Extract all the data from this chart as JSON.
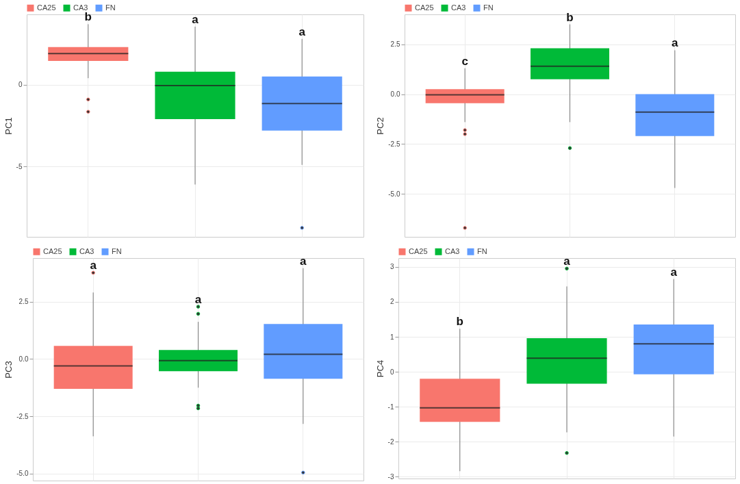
{
  "chart_data": [
    {
      "type": "box",
      "ylabel": "PC1",
      "categories": [
        null,
        null,
        null
      ],
      "legend": "top",
      "grid": true,
      "tick_labels": "y",
      "ylim": [
        -9.3,
        4.3
      ],
      "yticks": [
        -5,
        0
      ],
      "series": [
        {
          "name": "CA25",
          "color": "#f8766d",
          "boxes": [
            {
              "low": 0.4,
              "q1": 1.45,
              "median": 1.9,
              "q3": 2.3,
              "high": 3.7,
              "outliers": [
                -0.9,
                -1.65
              ]
            },
            null,
            null
          ]
        },
        {
          "name": "CA3",
          "color": "#00ba38",
          "boxes": [
            null,
            {
              "low": -6.1,
              "q1": -2.1,
              "median": -0.05,
              "q3": 0.8,
              "high": 3.55
            },
            null
          ]
        },
        {
          "name": "FN",
          "color": "#619cff",
          "boxes": [
            null,
            null,
            {
              "low": -4.9,
              "q1": -2.8,
              "median": -1.15,
              "q3": 0.5,
              "high": 2.8,
              "outliers": [
                -8.75
              ]
            }
          ]
        }
      ],
      "annotations": [
        "b",
        "a",
        "a"
      ]
    },
    {
      "type": "box",
      "ylabel": "PC2",
      "categories": [
        null,
        null,
        null
      ],
      "legend": "top",
      "grid": true,
      "tick_labels": "y",
      "ylim": [
        -7.15,
        4.0
      ],
      "yticks": [
        {
          "value": -5,
          "label": "-5.0"
        },
        {
          "value": -2.5,
          "label": "-2.5"
        },
        {
          "value": 0,
          "label": "0.0"
        },
        2.5
      ],
      "series": [
        {
          "name": "CA25",
          "color": "#f8766d",
          "boxes": [
            {
              "low": -1.4,
              "q1": -0.45,
              "median": -0.03,
              "q3": 0.25,
              "high": 1.3,
              "outliers": [
                -1.8,
                -2.0,
                -6.7
              ]
            },
            null,
            null
          ]
        },
        {
          "name": "CA3",
          "color": "#00ba38",
          "boxes": [
            null,
            {
              "low": -1.4,
              "q1": 0.75,
              "median": 1.4,
              "q3": 2.3,
              "high": 3.5,
              "outliers": [
                -2.7
              ]
            },
            null
          ]
        },
        {
          "name": "FN",
          "color": "#619cff",
          "boxes": [
            null,
            null,
            {
              "low": -4.7,
              "q1": -2.1,
              "median": -0.9,
              "q3": 0,
              "high": 2.2
            }
          ]
        }
      ],
      "annotations": [
        "c",
        "b",
        "a"
      ]
    },
    {
      "type": "box",
      "ylabel": "PC3",
      "categories": [
        null,
        null,
        null
      ],
      "legend": "top",
      "grid": true,
      "tick_labels": "y",
      "ylim": [
        -5.3,
        4.4
      ],
      "yticks": [
        {
          "value": -5,
          "label": "-5.0"
        },
        {
          "value": -2.5,
          "label": "-2.5"
        },
        {
          "value": 0,
          "label": "0.0"
        },
        2.5
      ],
      "series": [
        {
          "name": "CA25",
          "color": "#f8766d",
          "boxes": [
            {
              "low": -3.37,
              "q1": -1.3,
              "median": -0.3,
              "q3": 0.57,
              "high": 2.9,
              "outliers": [
                3.76
              ]
            },
            null,
            null
          ]
        },
        {
          "name": "CA3",
          "color": "#00ba38",
          "boxes": [
            null,
            {
              "low": -1.25,
              "q1": -0.53,
              "median": -0.07,
              "q3": 0.39,
              "high": 1.62,
              "outliers": [
                2.28,
                1.97,
                -2.03,
                -2.15
              ]
            },
            null
          ]
        },
        {
          "name": "FN",
          "color": "#619cff",
          "boxes": [
            null,
            null,
            {
              "low": -2.83,
              "q1": -0.86,
              "median": 0.21,
              "q3": 1.53,
              "high": 3.96,
              "outliers": [
                -4.95
              ]
            }
          ]
        }
      ],
      "annotations": [
        "a",
        "a",
        "a"
      ]
    },
    {
      "type": "box",
      "ylabel": "PC4",
      "categories": [
        null,
        null,
        null
      ],
      "legend": "top",
      "grid": true,
      "tick_labels": "y",
      "ylim": [
        -3.05,
        3.25
      ],
      "yticks": [
        -3,
        -2,
        -1,
        0,
        1,
        2,
        3
      ],
      "series": [
        {
          "name": "CA25",
          "color": "#f8766d",
          "boxes": [
            {
              "low": -2.84,
              "q1": -1.43,
              "median": -1.03,
              "q3": -0.2,
              "high": 1.23
            },
            null,
            null
          ]
        },
        {
          "name": "CA3",
          "color": "#00ba38",
          "boxes": [
            null,
            {
              "low": -1.73,
              "q1": -0.34,
              "median": 0.39,
              "q3": 0.96,
              "high": 2.44,
              "outliers": [
                2.95,
                -2.32
              ]
            },
            null
          ]
        },
        {
          "name": "FN",
          "color": "#619cff",
          "boxes": [
            null,
            null,
            {
              "low": -1.85,
              "q1": -0.07,
              "median": 0.8,
              "q3": 1.35,
              "high": 2.65
            }
          ]
        }
      ],
      "annotations": [
        "b",
        "a",
        "a"
      ]
    }
  ]
}
